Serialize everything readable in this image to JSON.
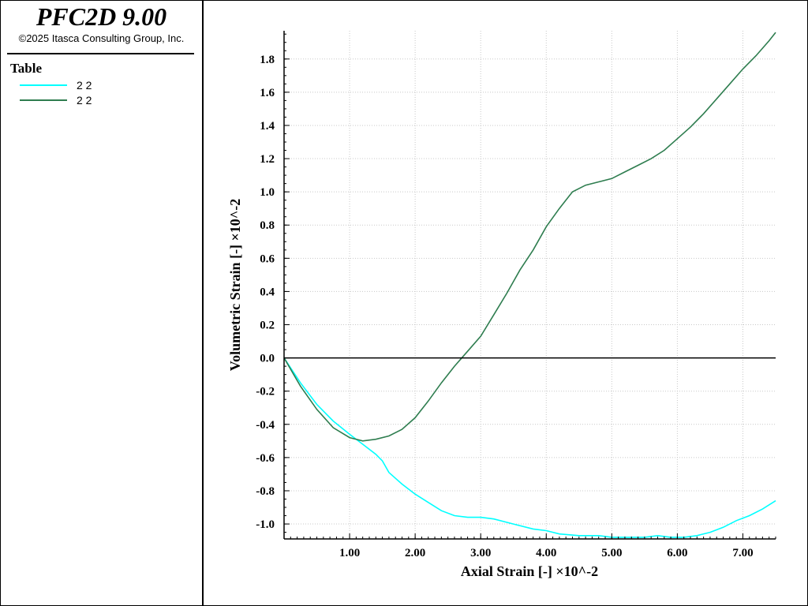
{
  "app": {
    "title": "PFC2D 9.00",
    "copyright": "©2025 Itasca Consulting Group, Inc."
  },
  "legend": {
    "title": "Table",
    "items": [
      {
        "label": "2 2",
        "color": "#00ffff"
      },
      {
        "label": "2 2",
        "color": "#2e7d4f"
      }
    ]
  },
  "chart_data": {
    "type": "line",
    "xlabel": "Axial Strain [-]  ×10^-2",
    "ylabel": "Volumetric Strain [-]  ×10^-2",
    "xlim": [
      0,
      7.5
    ],
    "ylim": [
      -1.09,
      1.97
    ],
    "xticks": [
      1.0,
      2.0,
      3.0,
      4.0,
      5.0,
      6.0,
      7.0
    ],
    "xtick_labels": [
      "1.00",
      "2.00",
      "3.00",
      "4.00",
      "5.00",
      "6.00",
      "7.00"
    ],
    "yticks": [
      -1.0,
      -0.8,
      -0.6,
      -0.4,
      -0.2,
      0.0,
      0.2,
      0.4,
      0.6,
      0.8,
      1.0,
      1.2,
      1.4,
      1.6,
      1.8
    ],
    "ytick_labels": [
      "-1.0",
      "-0.8",
      "-0.6",
      "-0.4",
      "-0.2",
      "0.0",
      "0.2",
      "0.4",
      "0.6",
      "0.8",
      "1.0",
      "1.2",
      "1.4",
      "1.6",
      "1.8"
    ],
    "grid": true,
    "zero_line": true,
    "series": [
      {
        "color": "#00ffff",
        "x": [
          0,
          0.25,
          0.5,
          0.75,
          1.0,
          1.2,
          1.4,
          1.5,
          1.6,
          1.8,
          2.0,
          2.2,
          2.4,
          2.6,
          2.8,
          3.0,
          3.2,
          3.5,
          3.8,
          4.0,
          4.2,
          4.5,
          4.8,
          5.0,
          5.3,
          5.5,
          5.7,
          5.9,
          6.1,
          6.3,
          6.5,
          6.7,
          6.9,
          7.1,
          7.3,
          7.5
        ],
        "y": [
          0,
          -0.15,
          -0.28,
          -0.38,
          -0.46,
          -0.52,
          -0.58,
          -0.62,
          -0.69,
          -0.76,
          -0.82,
          -0.87,
          -0.92,
          -0.95,
          -0.96,
          -0.96,
          -0.97,
          -1.0,
          -1.03,
          -1.04,
          -1.06,
          -1.07,
          -1.07,
          -1.08,
          -1.08,
          -1.08,
          -1.07,
          -1.08,
          -1.08,
          -1.07,
          -1.05,
          -1.02,
          -0.98,
          -0.95,
          -0.91,
          -0.86
        ]
      },
      {
        "color": "#2e7d4f",
        "x": [
          0,
          0.25,
          0.5,
          0.75,
          1.0,
          1.2,
          1.4,
          1.6,
          1.8,
          2.0,
          2.2,
          2.4,
          2.6,
          2.8,
          3.0,
          3.2,
          3.4,
          3.6,
          3.8,
          4.0,
          4.2,
          4.4,
          4.6,
          4.8,
          5.0,
          5.2,
          5.4,
          5.6,
          5.8,
          6.0,
          6.2,
          6.4,
          6.6,
          6.8,
          7.0,
          7.2,
          7.4,
          7.5
        ],
        "y": [
          0,
          -0.17,
          -0.31,
          -0.42,
          -0.48,
          -0.5,
          -0.49,
          -0.47,
          -0.43,
          -0.36,
          -0.26,
          -0.15,
          -0.05,
          0.04,
          0.13,
          0.26,
          0.39,
          0.53,
          0.65,
          0.79,
          0.9,
          1.0,
          1.04,
          1.06,
          1.08,
          1.12,
          1.16,
          1.2,
          1.25,
          1.32,
          1.39,
          1.47,
          1.56,
          1.65,
          1.74,
          1.82,
          1.91,
          1.96
        ]
      }
    ]
  }
}
